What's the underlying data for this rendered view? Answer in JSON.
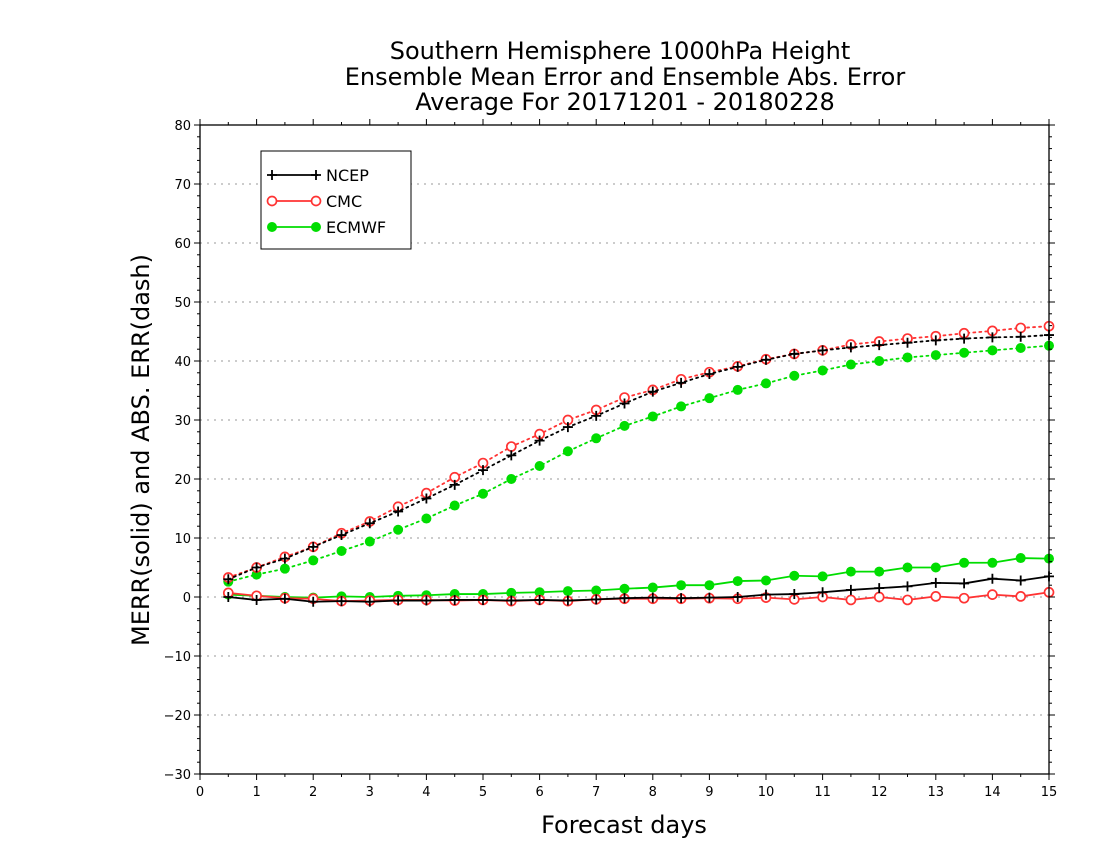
{
  "chart_data": {
    "type": "line",
    "title_lines": [
      "Southern Hemisphere 1000hPa Height",
      "Ensemble Mean Error and Ensemble Abs. Error",
      "Average For 20171201 - 20180228"
    ],
    "xlabel": "Forecast days",
    "ylabel": "MERR(solid) and ABS. ERR(dash)",
    "xlim": [
      0,
      15
    ],
    "ylim": [
      -30,
      80
    ],
    "xticks": [
      0,
      1,
      2,
      3,
      4,
      5,
      6,
      7,
      8,
      9,
      10,
      11,
      12,
      13,
      14,
      15
    ],
    "yticks": [
      -30,
      -20,
      -10,
      0,
      10,
      20,
      30,
      40,
      50,
      60,
      70,
      80
    ],
    "grid": "horizontal dotted",
    "legend_position": "top-left",
    "x": [
      0.5,
      1.0,
      1.5,
      2.0,
      2.5,
      3.0,
      3.5,
      4.0,
      4.5,
      5.0,
      5.5,
      6.0,
      6.5,
      7.0,
      7.5,
      8.0,
      8.5,
      9.0,
      9.5,
      10.0,
      10.5,
      11.0,
      11.5,
      12.0,
      12.5,
      13.0,
      13.5,
      14.0,
      14.5,
      15.0
    ],
    "series": [
      {
        "name": "NCEP",
        "color": "#000000",
        "marker": "plus",
        "merr": [
          0.0,
          -0.5,
          -0.3,
          -0.8,
          -0.7,
          -0.8,
          -0.6,
          -0.6,
          -0.5,
          -0.5,
          -0.6,
          -0.5,
          -0.6,
          -0.4,
          -0.2,
          -0.1,
          -0.2,
          -0.1,
          0.0,
          0.4,
          0.5,
          0.8,
          1.2,
          1.5,
          1.8,
          2.4,
          2.3,
          3.1,
          2.8,
          3.5
        ],
        "abs_err": [
          3.0,
          5.0,
          6.5,
          8.5,
          10.5,
          12.5,
          14.5,
          16.7,
          19.0,
          21.5,
          24.0,
          26.5,
          28.8,
          30.7,
          32.8,
          34.8,
          36.3,
          37.8,
          39.0,
          40.2,
          41.2,
          41.8,
          42.3,
          42.7,
          43.1,
          43.5,
          43.8,
          44.0,
          44.1,
          44.4
        ]
      },
      {
        "name": "CMC",
        "color": "#ff3333",
        "marker": "open-circle",
        "merr": [
          0.7,
          0.2,
          -0.2,
          -0.3,
          -0.7,
          -0.6,
          -0.5,
          -0.5,
          -0.6,
          -0.5,
          -0.7,
          -0.5,
          -0.7,
          -0.4,
          -0.3,
          -0.3,
          -0.3,
          -0.2,
          -0.3,
          -0.1,
          -0.4,
          0.0,
          -0.5,
          0.0,
          -0.5,
          0.1,
          -0.2,
          0.4,
          0.1,
          0.8
        ],
        "abs_err": [
          3.3,
          5.0,
          6.8,
          8.5,
          10.8,
          12.8,
          15.3,
          17.6,
          20.3,
          22.7,
          25.5,
          27.6,
          30.0,
          31.7,
          33.8,
          35.1,
          36.9,
          38.1,
          39.1,
          40.3,
          41.2,
          41.8,
          42.8,
          43.3,
          43.8,
          44.2,
          44.7,
          45.1,
          45.6,
          45.9
        ]
      },
      {
        "name": "ECMWF",
        "color": "#00dd00",
        "marker": "filled-circle",
        "merr": [
          0.4,
          0.2,
          0.0,
          -0.1,
          0.1,
          0.0,
          0.2,
          0.3,
          0.5,
          0.5,
          0.7,
          0.8,
          1.0,
          1.1,
          1.4,
          1.6,
          2.0,
          2.0,
          2.7,
          2.8,
          3.6,
          3.5,
          4.3,
          4.3,
          5.0,
          5.0,
          5.8,
          5.8,
          6.6,
          6.5
        ],
        "abs_err": [
          2.6,
          3.8,
          4.8,
          6.2,
          7.8,
          9.4,
          11.4,
          13.3,
          15.5,
          17.5,
          20.0,
          22.2,
          24.7,
          26.9,
          29.0,
          30.6,
          32.3,
          33.7,
          35.1,
          36.2,
          37.5,
          38.4,
          39.4,
          40.0,
          40.6,
          41.0,
          41.4,
          41.8,
          42.2,
          42.6
        ]
      }
    ]
  }
}
